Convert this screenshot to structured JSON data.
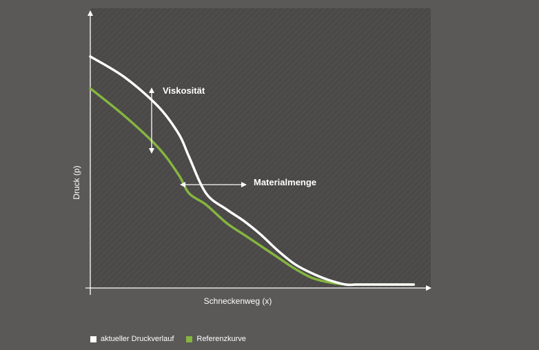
{
  "chart_data": {
    "type": "line",
    "xlabel": "Schneckenweg (x)",
    "ylabel": "Druck (p)",
    "xlim": [
      0,
      100
    ],
    "ylim": [
      0,
      100
    ],
    "grid": false,
    "legend_placement": "bottom-left",
    "annotations": [
      {
        "text": "Viskosität",
        "type": "vertical-double-arrow"
      },
      {
        "text": "Materialmenge",
        "type": "horizontal-double-arrow"
      }
    ],
    "series": [
      {
        "name": "aktueller Druckverlauf",
        "color": "#ffffff",
        "x": [
          0,
          10,
          20,
          26,
          29,
          34,
          40,
          45,
          50,
          55,
          60,
          65,
          70,
          75,
          78,
          81,
          85,
          90,
          95
        ],
        "y": [
          100,
          91,
          78,
          66,
          56,
          40,
          33,
          28,
          22,
          15,
          9,
          5,
          2,
          0,
          0,
          0,
          0,
          0,
          0
        ]
      },
      {
        "name": "Referenzkurve",
        "color": "#86b540",
        "x": [
          0,
          10,
          20,
          26,
          29,
          34,
          40,
          45,
          50,
          55,
          60,
          65,
          70,
          75,
          78,
          81,
          85,
          90,
          95
        ],
        "y": [
          86,
          74,
          60,
          48,
          40,
          35,
          27,
          22,
          17,
          12,
          7,
          3,
          1,
          0,
          0,
          0,
          0,
          0,
          0
        ]
      }
    ]
  }
}
